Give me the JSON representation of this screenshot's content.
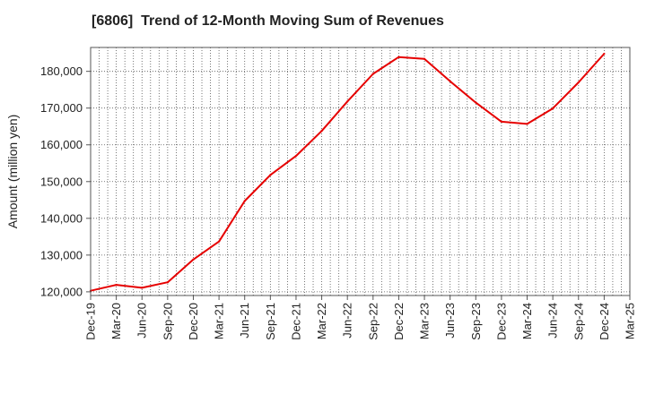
{
  "chart_data": {
    "type": "line",
    "title": "[6806]  Trend of 12-Month Moving Sum of Revenues",
    "xlabel": "",
    "ylabel": "Amount (million yen)",
    "x": [
      "Dec-19",
      "Mar-20",
      "Jun-20",
      "Sep-20",
      "Dec-20",
      "Mar-21",
      "Jun-21",
      "Sep-21",
      "Dec-21",
      "Mar-22",
      "Jun-22",
      "Sep-22",
      "Dec-22",
      "Mar-23",
      "Jun-23",
      "Sep-23",
      "Dec-23",
      "Mar-24",
      "Jun-24",
      "Sep-24",
      "Dec-24",
      "Mar-25"
    ],
    "series": [
      {
        "color": "#e60000",
        "values": [
          120300,
          121900,
          121100,
          122600,
          128800,
          133700,
          144700,
          151800,
          157000,
          163800,
          171800,
          179300,
          183900,
          183400,
          177300,
          171500,
          166300,
          165700,
          169900,
          177000,
          184800,
          null
        ]
      }
    ],
    "ylim": [
      119000,
      186500
    ],
    "yticks": [
      120000,
      130000,
      140000,
      150000,
      160000,
      170000,
      180000
    ],
    "ytick_labels": [
      "120,000",
      "130,000",
      "140,000",
      "150,000",
      "160,000",
      "170,000",
      "180,000"
    ],
    "grid": true,
    "legend": "none"
  }
}
